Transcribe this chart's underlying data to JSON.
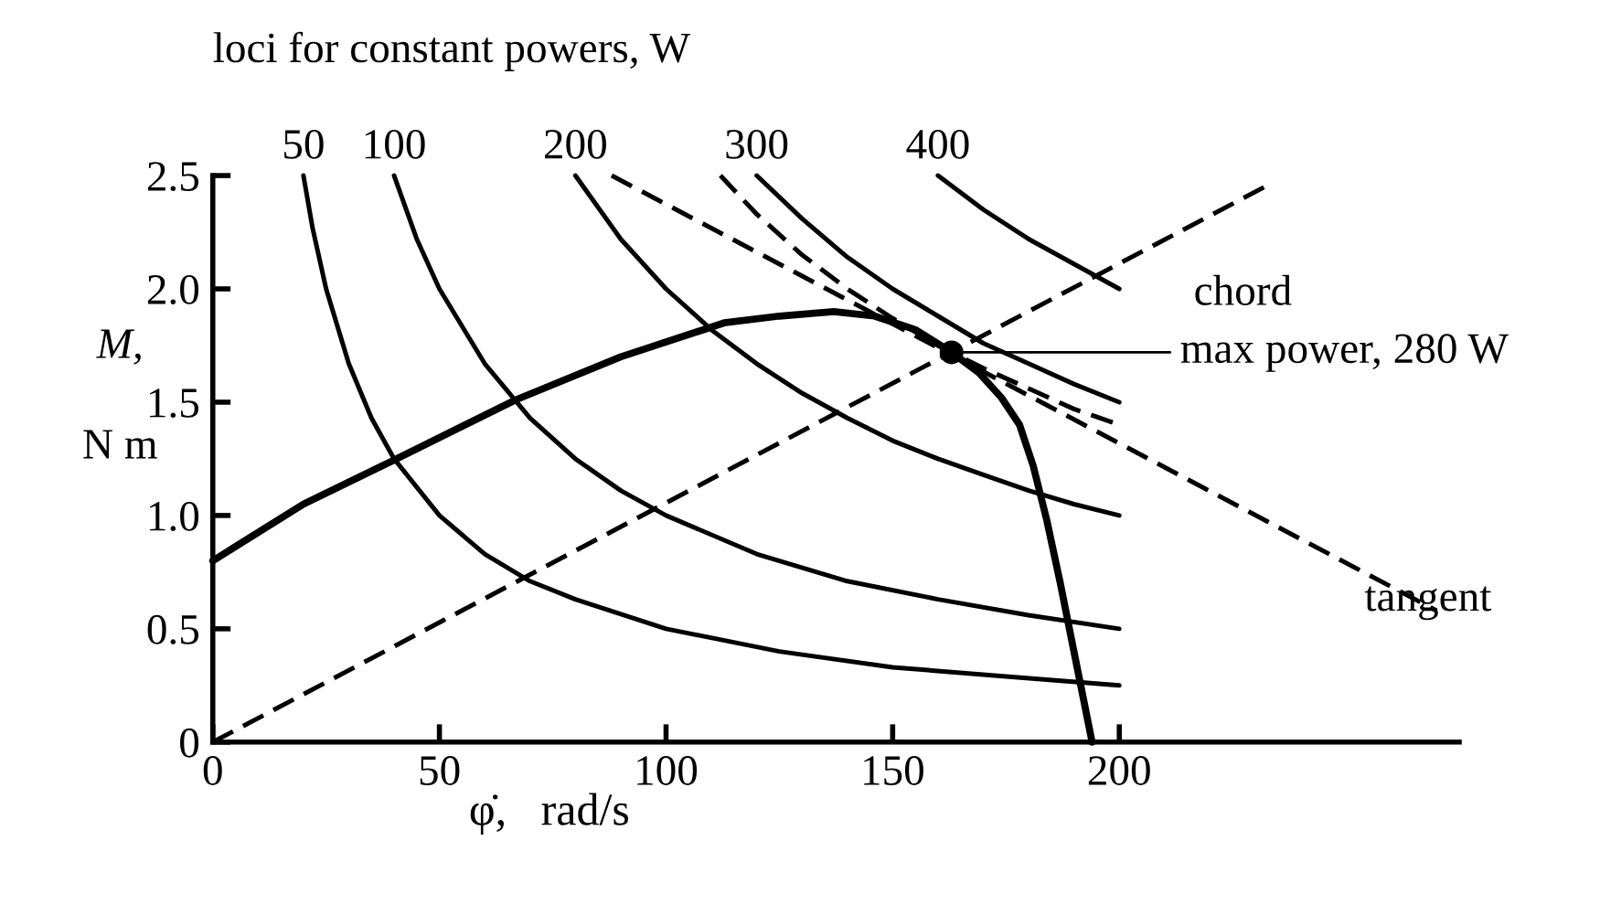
{
  "chart_data": {
    "type": "line",
    "title": "loci for constant powers, W",
    "xlabel": "φ̇,   rad/s",
    "ylabel": "M,\nN m",
    "xlim": [
      0,
      275
    ],
    "ylim": [
      0,
      2.5
    ],
    "xticks": [
      0,
      50,
      100,
      150,
      200
    ],
    "yticks": [
      {
        "value": 0,
        "label": "0"
      },
      {
        "value": 0.5,
        "label": "0.5"
      },
      {
        "value": 1.0,
        "label": "1.0"
      },
      {
        "value": 1.5,
        "label": "1.5"
      },
      {
        "value": 2.0,
        "label": "2.0"
      },
      {
        "value": 2.5,
        "label": "2.5"
      }
    ],
    "grid": false,
    "legend": false,
    "series": [
      {
        "color": "#000000",
        "line_style": "solid",
        "x": [
          0,
          20,
          39.5,
          66.8,
          90,
          112.8,
          125,
          137,
          146,
          155,
          163,
          169,
          174,
          178,
          181,
          184,
          187,
          190,
          194
        ],
        "values": [
          0.8,
          1.05,
          1.24,
          1.51,
          1.7,
          1.85,
          1.88,
          1.9,
          1.88,
          1.82,
          1.72,
          1.63,
          1.52,
          1.4,
          1.22,
          0.98,
          0.7,
          0.4,
          0
        ]
      },
      {
        "name": "50",
        "color": "#000000",
        "line_style": "solid",
        "x": [
          20,
          22,
          25,
          30,
          35,
          40,
          50,
          60,
          70,
          80,
          100,
          125,
          150,
          175,
          200
        ],
        "values": [
          2.5,
          2.27,
          2.0,
          1.67,
          1.43,
          1.25,
          1.0,
          0.83,
          0.71,
          0.63,
          0.5,
          0.4,
          0.33,
          0.29,
          0.25
        ]
      },
      {
        "name": "100",
        "color": "#000000",
        "line_style": "solid",
        "x": [
          40,
          45,
          50,
          60,
          70,
          80,
          90,
          100,
          120,
          140,
          160,
          180,
          200
        ],
        "values": [
          2.5,
          2.22,
          2.0,
          1.67,
          1.43,
          1.25,
          1.11,
          1.0,
          0.83,
          0.71,
          0.63,
          0.56,
          0.5
        ]
      },
      {
        "name": "200",
        "color": "#000000",
        "line_style": "solid",
        "x": [
          80,
          90,
          100,
          110,
          120,
          130,
          140,
          150,
          160,
          170,
          180,
          190,
          200
        ],
        "values": [
          2.5,
          2.22,
          2.0,
          1.82,
          1.67,
          1.54,
          1.43,
          1.33,
          1.25,
          1.18,
          1.11,
          1.05,
          1.0
        ]
      },
      {
        "color": "#000000",
        "line_style": "dashed",
        "x": [
          112,
          120,
          130,
          140,
          150,
          160,
          170,
          180,
          190,
          200
        ],
        "values": [
          2.5,
          2.33,
          2.15,
          2.0,
          1.87,
          1.75,
          1.65,
          1.56,
          1.47,
          1.4
        ]
      },
      {
        "name": "300",
        "color": "#000000",
        "line_style": "solid",
        "x": [
          120,
          130,
          140,
          150,
          160,
          170,
          180,
          190,
          200
        ],
        "values": [
          2.5,
          2.31,
          2.14,
          2.0,
          1.88,
          1.76,
          1.67,
          1.58,
          1.5
        ]
      },
      {
        "name": "400",
        "color": "#000000",
        "line_style": "solid",
        "x": [
          160,
          170,
          180,
          190,
          200
        ],
        "values": [
          2.5,
          2.35,
          2.22,
          2.11,
          2.0
        ]
      },
      {
        "color": "#000000",
        "line_style": "dashed",
        "x": [
          0,
          233
        ],
        "values": [
          0,
          2.46
        ]
      },
      {
        "color": "#000000",
        "line_style": "dashed",
        "x": [
          88,
          270
        ],
        "values": [
          2.5,
          0.58
        ]
      },
      {
        "type": "scatter",
        "color": "#000000",
        "marker": "circle",
        "x": [
          163
        ],
        "values": [
          1.72
        ]
      }
    ],
    "annotations": [
      "chord",
      {
        "text": "max power, 280 W",
        "x": 163,
        "y": 1.72
      },
      "tangent"
    ]
  }
}
